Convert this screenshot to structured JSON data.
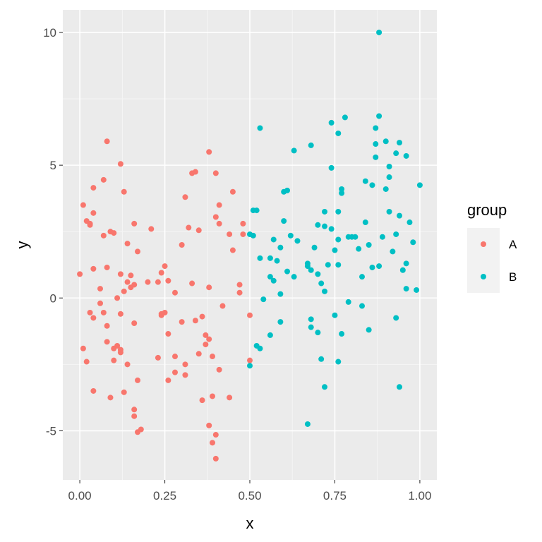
{
  "chart_data": {
    "type": "scatter",
    "title": "",
    "xlabel": "x",
    "ylabel": "y",
    "xlim": [
      -0.05,
      1.05
    ],
    "ylim": [
      -6.85,
      10.85
    ],
    "x_ticks": [
      0,
      0.25,
      0.5,
      0.75,
      1.0
    ],
    "x_tick_labels": [
      "0.00",
      "0.25",
      "0.50",
      "0.75",
      "1.00"
    ],
    "y_ticks": [
      -5,
      0,
      5,
      10
    ],
    "y_tick_labels": [
      "-5",
      "0",
      "5",
      "10"
    ],
    "grid": true,
    "legend": {
      "title": "group",
      "position": "right"
    },
    "series": [
      {
        "name": "A",
        "color": "#F8766D",
        "points": [
          [
            0.0,
            0.9
          ],
          [
            0.01,
            3.5
          ],
          [
            0.01,
            -1.9
          ],
          [
            0.02,
            2.9
          ],
          [
            0.02,
            -2.4
          ],
          [
            0.03,
            2.8
          ],
          [
            0.03,
            2.75
          ],
          [
            0.03,
            -0.55
          ],
          [
            0.04,
            -0.75
          ],
          [
            0.04,
            3.2
          ],
          [
            0.04,
            4.15
          ],
          [
            0.04,
            -3.5
          ],
          [
            0.04,
            1.1
          ],
          [
            0.06,
            -0.2
          ],
          [
            0.06,
            0.35
          ],
          [
            0.07,
            4.45
          ],
          [
            0.07,
            -0.55
          ],
          [
            0.07,
            2.35
          ],
          [
            0.08,
            5.9
          ],
          [
            0.08,
            1.15
          ],
          [
            0.08,
            -1.05
          ],
          [
            0.08,
            -1.65
          ],
          [
            0.09,
            -3.75
          ],
          [
            0.09,
            2.5
          ],
          [
            0.1,
            -1.9
          ],
          [
            0.1,
            -2.35
          ],
          [
            0.1,
            2.45
          ],
          [
            0.11,
            0.0
          ],
          [
            0.11,
            -1.8
          ],
          [
            0.12,
            0.9
          ],
          [
            0.12,
            -1.95
          ],
          [
            0.12,
            -2.05
          ],
          [
            0.12,
            5.05
          ],
          [
            0.12,
            -0.6
          ],
          [
            0.13,
            4.0
          ],
          [
            0.13,
            0.25
          ],
          [
            0.13,
            -3.55
          ],
          [
            0.14,
            2.05
          ],
          [
            0.14,
            0.6
          ],
          [
            0.14,
            -2.5
          ],
          [
            0.15,
            0.85
          ],
          [
            0.15,
            0.4
          ],
          [
            0.16,
            -0.95
          ],
          [
            0.16,
            -4.2
          ],
          [
            0.16,
            -4.45
          ],
          [
            0.16,
            2.8
          ],
          [
            0.16,
            0.5
          ],
          [
            0.17,
            -3.1
          ],
          [
            0.17,
            1.75
          ],
          [
            0.17,
            -5.05
          ],
          [
            0.18,
            -4.95
          ],
          [
            0.2,
            0.6
          ],
          [
            0.21,
            2.6
          ],
          [
            0.23,
            0.6
          ],
          [
            0.23,
            -2.25
          ],
          [
            0.24,
            -0.65
          ],
          [
            0.24,
            0.95
          ],
          [
            0.24,
            -0.6
          ],
          [
            0.25,
            -0.55
          ],
          [
            0.25,
            1.2
          ],
          [
            0.26,
            0.65
          ],
          [
            0.26,
            -1.35
          ],
          [
            0.26,
            -3.1
          ],
          [
            0.28,
            0.2
          ],
          [
            0.28,
            -2.2
          ],
          [
            0.28,
            -2.8
          ],
          [
            0.3,
            -0.9
          ],
          [
            0.3,
            2.0
          ],
          [
            0.31,
            -2.5
          ],
          [
            0.31,
            -2.9
          ],
          [
            0.31,
            3.8
          ],
          [
            0.32,
            2.65
          ],
          [
            0.33,
            4.7
          ],
          [
            0.33,
            0.55
          ],
          [
            0.34,
            4.75
          ],
          [
            0.34,
            -0.85
          ],
          [
            0.35,
            2.55
          ],
          [
            0.35,
            -2.1
          ],
          [
            0.36,
            -0.7
          ],
          [
            0.36,
            -3.85
          ],
          [
            0.37,
            -1.4
          ],
          [
            0.37,
            -1.75
          ],
          [
            0.38,
            -1.55
          ],
          [
            0.38,
            0.4
          ],
          [
            0.38,
            5.5
          ],
          [
            0.38,
            -4.8
          ],
          [
            0.39,
            -2.2
          ],
          [
            0.39,
            -3.7
          ],
          [
            0.39,
            -5.45
          ],
          [
            0.4,
            4.7
          ],
          [
            0.4,
            -6.05
          ],
          [
            0.4,
            -5.15
          ],
          [
            0.4,
            3.05
          ],
          [
            0.41,
            2.8
          ],
          [
            0.41,
            3.5
          ],
          [
            0.41,
            -2.7
          ],
          [
            0.42,
            -0.3
          ],
          [
            0.44,
            2.4
          ],
          [
            0.44,
            -3.75
          ],
          [
            0.45,
            4.0
          ],
          [
            0.45,
            1.8
          ],
          [
            0.47,
            0.5
          ],
          [
            0.47,
            0.2
          ],
          [
            0.48,
            2.8
          ],
          [
            0.48,
            2.4
          ],
          [
            0.5,
            -0.65
          ],
          [
            0.5,
            -2.35
          ]
        ]
      },
      {
        "name": "B",
        "color": "#00BFC4",
        "points": [
          [
            0.5,
            2.4
          ],
          [
            0.5,
            -2.55
          ],
          [
            0.51,
            3.3
          ],
          [
            0.51,
            2.35
          ],
          [
            0.52,
            -1.8
          ],
          [
            0.52,
            3.3
          ],
          [
            0.53,
            -1.9
          ],
          [
            0.53,
            1.5
          ],
          [
            0.53,
            6.4
          ],
          [
            0.54,
            -0.05
          ],
          [
            0.56,
            1.5
          ],
          [
            0.56,
            0.8
          ],
          [
            0.56,
            -1.4
          ],
          [
            0.57,
            2.2
          ],
          [
            0.57,
            0.65
          ],
          [
            0.58,
            1.4
          ],
          [
            0.59,
            -0.9
          ],
          [
            0.59,
            1.9
          ],
          [
            0.59,
            0.15
          ],
          [
            0.6,
            2.9
          ],
          [
            0.6,
            4.0
          ],
          [
            0.61,
            4.05
          ],
          [
            0.61,
            1.0
          ],
          [
            0.62,
            2.35
          ],
          [
            0.63,
            5.55
          ],
          [
            0.63,
            0.8
          ],
          [
            0.64,
            2.15
          ],
          [
            0.67,
            -4.75
          ],
          [
            0.67,
            1.3
          ],
          [
            0.67,
            1.2
          ],
          [
            0.68,
            5.75
          ],
          [
            0.68,
            -0.8
          ],
          [
            0.68,
            -1.1
          ],
          [
            0.68,
            1.05
          ],
          [
            0.69,
            1.9
          ],
          [
            0.7,
            0.9
          ],
          [
            0.7,
            2.75
          ],
          [
            0.7,
            -1.3
          ],
          [
            0.71,
            -2.3
          ],
          [
            0.71,
            0.55
          ],
          [
            0.72,
            -3.35
          ],
          [
            0.72,
            0.25
          ],
          [
            0.72,
            3.25
          ],
          [
            0.72,
            2.7
          ],
          [
            0.73,
            1.25
          ],
          [
            0.74,
            4.9
          ],
          [
            0.74,
            2.6
          ],
          [
            0.74,
            6.6
          ],
          [
            0.75,
            -0.65
          ],
          [
            0.75,
            1.8
          ],
          [
            0.76,
            3.25
          ],
          [
            0.76,
            6.2
          ],
          [
            0.76,
            2.2
          ],
          [
            0.76,
            1.25
          ],
          [
            0.76,
            -2.4
          ],
          [
            0.77,
            3.95
          ],
          [
            0.77,
            4.1
          ],
          [
            0.77,
            -1.35
          ],
          [
            0.78,
            6.8
          ],
          [
            0.79,
            2.3
          ],
          [
            0.79,
            -0.15
          ],
          [
            0.8,
            2.3
          ],
          [
            0.81,
            2.3
          ],
          [
            0.82,
            1.85
          ],
          [
            0.83,
            -0.3
          ],
          [
            0.83,
            0.8
          ],
          [
            0.84,
            2.85
          ],
          [
            0.84,
            4.4
          ],
          [
            0.85,
            2.0
          ],
          [
            0.85,
            -1.2
          ],
          [
            0.86,
            4.25
          ],
          [
            0.86,
            1.15
          ],
          [
            0.87,
            5.8
          ],
          [
            0.87,
            5.3
          ],
          [
            0.87,
            6.4
          ],
          [
            0.88,
            10.0
          ],
          [
            0.88,
            6.85
          ],
          [
            0.88,
            1.2
          ],
          [
            0.89,
            2.3
          ],
          [
            0.9,
            5.9
          ],
          [
            0.9,
            4.1
          ],
          [
            0.91,
            4.95
          ],
          [
            0.91,
            3.25
          ],
          [
            0.91,
            4.55
          ],
          [
            0.92,
            1.75
          ],
          [
            0.93,
            5.45
          ],
          [
            0.93,
            2.4
          ],
          [
            0.93,
            -0.75
          ],
          [
            0.94,
            3.1
          ],
          [
            0.94,
            5.85
          ],
          [
            0.94,
            -3.35
          ],
          [
            0.95,
            1.05
          ],
          [
            0.96,
            5.35
          ],
          [
            0.96,
            0.35
          ],
          [
            0.96,
            1.3
          ],
          [
            0.97,
            2.85
          ],
          [
            0.98,
            2.1
          ],
          [
            0.99,
            0.3
          ],
          [
            1.0,
            4.25
          ]
        ]
      }
    ]
  }
}
